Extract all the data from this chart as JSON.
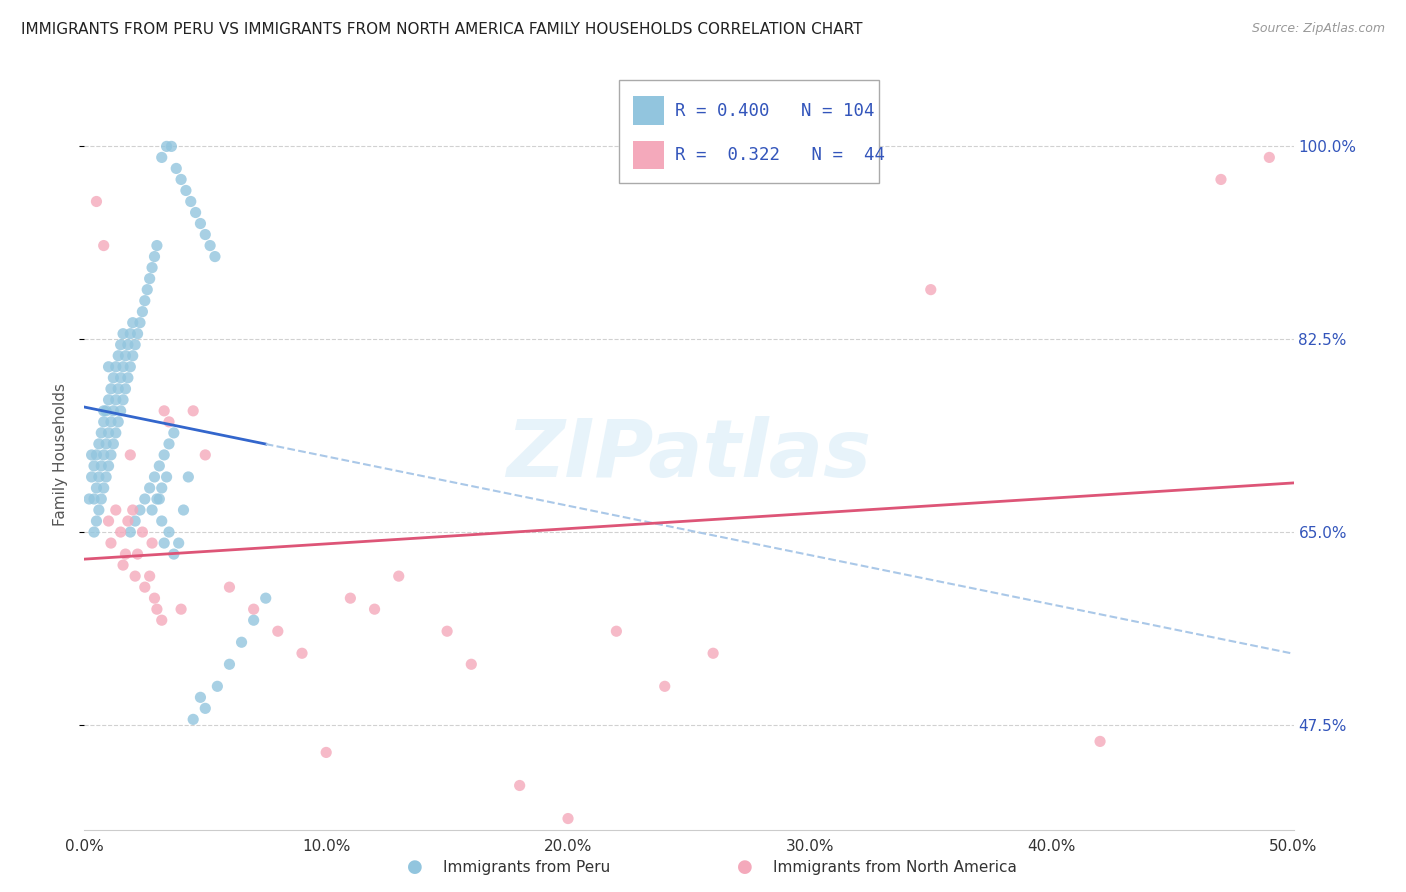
{
  "title": "IMMIGRANTS FROM PERU VS IMMIGRANTS FROM NORTH AMERICA FAMILY HOUSEHOLDS CORRELATION CHART",
  "source": "Source: ZipAtlas.com",
  "ylabel": "Family Households",
  "xlim": [
    0.0,
    0.5
  ],
  "ylim": [
    0.38,
    1.06
  ],
  "ytick_vals": [
    0.475,
    0.65,
    0.825,
    1.0
  ],
  "ytick_labels": [
    "47.5%",
    "65.0%",
    "82.5%",
    "100.0%"
  ],
  "xtick_vals": [
    0.0,
    0.1,
    0.2,
    0.3,
    0.4,
    0.5
  ],
  "xtick_labels": [
    "0.0%",
    "10.0%",
    "20.0%",
    "30.0%",
    "40.0%",
    "50.0%"
  ],
  "legend_R1": "0.400",
  "legend_N1": "104",
  "legend_R2": "0.322",
  "legend_N2": "44",
  "color_blue": "#92c5de",
  "color_pink": "#f4a9bb",
  "color_blue_text": "#3355bb",
  "trendline1_color": "#3366cc",
  "trendline2_color": "#dd5577",
  "trendline1_dashed_color": "#aac8e8",
  "grid_color": "#cccccc",
  "watermark": "ZIPatlas",
  "legend_label1": "Immigrants from Peru",
  "legend_label2": "Immigrants from North America",
  "blue_scatter_x": [
    0.002,
    0.003,
    0.003,
    0.004,
    0.004,
    0.004,
    0.005,
    0.005,
    0.005,
    0.006,
    0.006,
    0.006,
    0.007,
    0.007,
    0.007,
    0.008,
    0.008,
    0.008,
    0.008,
    0.009,
    0.009,
    0.009,
    0.01,
    0.01,
    0.01,
    0.01,
    0.011,
    0.011,
    0.011,
    0.012,
    0.012,
    0.012,
    0.013,
    0.013,
    0.013,
    0.014,
    0.014,
    0.014,
    0.015,
    0.015,
    0.015,
    0.016,
    0.016,
    0.016,
    0.017,
    0.017,
    0.018,
    0.018,
    0.019,
    0.019,
    0.02,
    0.02,
    0.021,
    0.022,
    0.023,
    0.024,
    0.025,
    0.026,
    0.027,
    0.028,
    0.029,
    0.03,
    0.031,
    0.032,
    0.033,
    0.035,
    0.037,
    0.039,
    0.041,
    0.043,
    0.045,
    0.048,
    0.05,
    0.055,
    0.06,
    0.065,
    0.07,
    0.075,
    0.032,
    0.034,
    0.036,
    0.038,
    0.04,
    0.042,
    0.044,
    0.046,
    0.048,
    0.05,
    0.052,
    0.054,
    0.028,
    0.03,
    0.032,
    0.034,
    0.019,
    0.021,
    0.023,
    0.025,
    0.027,
    0.029,
    0.031,
    0.033,
    0.035,
    0.037
  ],
  "blue_scatter_y": [
    0.68,
    0.7,
    0.72,
    0.65,
    0.68,
    0.71,
    0.66,
    0.69,
    0.72,
    0.67,
    0.7,
    0.73,
    0.68,
    0.71,
    0.74,
    0.69,
    0.72,
    0.75,
    0.76,
    0.7,
    0.73,
    0.76,
    0.71,
    0.74,
    0.77,
    0.8,
    0.72,
    0.75,
    0.78,
    0.73,
    0.76,
    0.79,
    0.74,
    0.77,
    0.8,
    0.75,
    0.78,
    0.81,
    0.76,
    0.79,
    0.82,
    0.77,
    0.8,
    0.83,
    0.78,
    0.81,
    0.79,
    0.82,
    0.8,
    0.83,
    0.81,
    0.84,
    0.82,
    0.83,
    0.84,
    0.85,
    0.86,
    0.87,
    0.88,
    0.89,
    0.9,
    0.91,
    0.68,
    0.66,
    0.64,
    0.65,
    0.63,
    0.64,
    0.67,
    0.7,
    0.48,
    0.5,
    0.49,
    0.51,
    0.53,
    0.55,
    0.57,
    0.59,
    0.99,
    1.0,
    1.0,
    0.98,
    0.97,
    0.96,
    0.95,
    0.94,
    0.93,
    0.92,
    0.91,
    0.9,
    0.67,
    0.68,
    0.69,
    0.7,
    0.65,
    0.66,
    0.67,
    0.68,
    0.69,
    0.7,
    0.71,
    0.72,
    0.73,
    0.74
  ],
  "pink_scatter_x": [
    0.005,
    0.008,
    0.01,
    0.011,
    0.013,
    0.015,
    0.016,
    0.017,
    0.018,
    0.019,
    0.02,
    0.021,
    0.022,
    0.024,
    0.025,
    0.027,
    0.028,
    0.029,
    0.03,
    0.032,
    0.033,
    0.035,
    0.04,
    0.045,
    0.05,
    0.06,
    0.07,
    0.08,
    0.09,
    0.1,
    0.11,
    0.12,
    0.13,
    0.15,
    0.16,
    0.18,
    0.2,
    0.22,
    0.24,
    0.26,
    0.35,
    0.42,
    0.47,
    0.49
  ],
  "pink_scatter_y": [
    0.95,
    0.91,
    0.66,
    0.64,
    0.67,
    0.65,
    0.62,
    0.63,
    0.66,
    0.72,
    0.67,
    0.61,
    0.63,
    0.65,
    0.6,
    0.61,
    0.64,
    0.59,
    0.58,
    0.57,
    0.76,
    0.75,
    0.58,
    0.76,
    0.72,
    0.6,
    0.58,
    0.56,
    0.54,
    0.45,
    0.59,
    0.58,
    0.61,
    0.56,
    0.53,
    0.42,
    0.39,
    0.56,
    0.51,
    0.54,
    0.87,
    0.46,
    0.97,
    0.99
  ]
}
